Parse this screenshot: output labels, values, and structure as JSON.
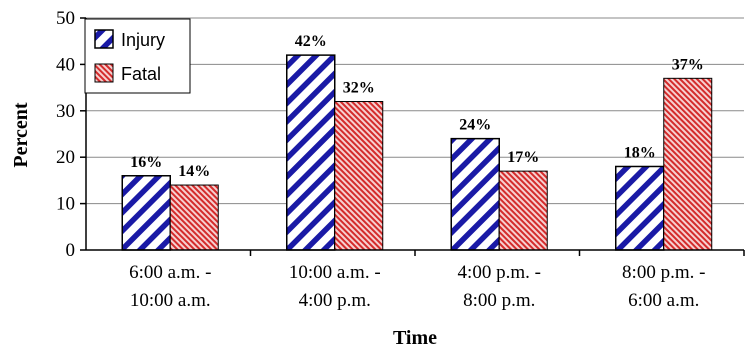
{
  "chart_data": {
    "type": "bar",
    "categories": [
      [
        "6:00 a.m. -",
        "10:00 a.m."
      ],
      [
        "10:00 a.m. -",
        "4:00 p.m."
      ],
      [
        "4:00 p.m. -",
        "8:00 p.m."
      ],
      [
        "8:00 p.m. -",
        "6:00 a.m."
      ]
    ],
    "series": [
      {
        "name": "Injury",
        "values": [
          16,
          42,
          24,
          18
        ],
        "labels": [
          "16%",
          "42%",
          "24%",
          "18%"
        ],
        "pattern": "diagonal-hatch",
        "color": "#1a1aa6",
        "background": "#ffffff"
      },
      {
        "name": "Fatal",
        "values": [
          14,
          32,
          17,
          37
        ],
        "labels": [
          "14%",
          "32%",
          "17%",
          "37%"
        ],
        "pattern": "fine-hatch",
        "color": "#d42b2b",
        "background": "#f6d0d0"
      }
    ],
    "xlabel": "Time",
    "ylabel": "Percent",
    "ylim": [
      0,
      50
    ],
    "yticks": [
      0,
      10,
      20,
      30,
      40,
      50
    ],
    "grid": true,
    "legend": "top-left"
  }
}
